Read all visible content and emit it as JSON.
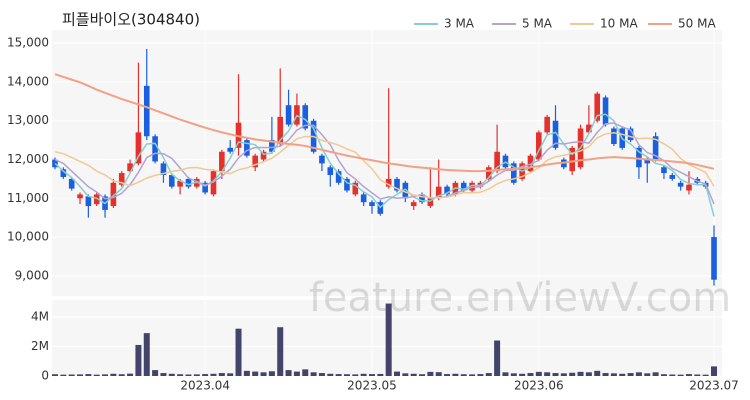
{
  "chart_data": [
    {
      "type": "candlestick",
      "title": "피플바이오(304840)",
      "watermark": "feature.enViewV.com",
      "up_color": "#e5302c",
      "down_color": "#1a5fe0",
      "ylim": [
        8480,
        15340
      ],
      "yticks": [
        {
          "value": 9000,
          "label": "9,000"
        },
        {
          "value": 10000,
          "label": "10,000"
        },
        {
          "value": 11000,
          "label": "11,000"
        },
        {
          "value": 12000,
          "label": "12,000"
        },
        {
          "value": 13000,
          "label": "13,000"
        },
        {
          "value": 14000,
          "label": "14,000"
        },
        {
          "value": 15000,
          "label": "15,000"
        }
      ],
      "grid": true,
      "legend": "top-right",
      "open": [
        12000,
        11750,
        11500,
        11000,
        11050,
        10850,
        11050,
        10800,
        11350,
        11700,
        11900,
        13900,
        12600,
        11900,
        11600,
        11300,
        11500,
        11300,
        11400,
        11100,
        11700,
        12300,
        12300,
        12500,
        11800,
        12000,
        12500,
        12400,
        13400,
        12900,
        13400,
        13000,
        12100,
        11800,
        11700,
        11500,
        11100,
        11100,
        10900,
        10900,
        11300,
        11500,
        11400,
        10800,
        11100,
        10800,
        11000,
        11300,
        11100,
        11400,
        11200,
        11300,
        11500,
        11700,
        12100,
        11900,
        11500,
        11700,
        12000,
        12700,
        13000,
        12000,
        11700,
        11800,
        12700,
        13000,
        13600,
        12800,
        12800,
        12800,
        12300,
        12000,
        12600,
        11800,
        11600,
        11400,
        11200,
        11500,
        11400,
        10000
      ],
      "high": [
        12050,
        11800,
        11550,
        11150,
        11100,
        11150,
        11100,
        11500,
        11700,
        12000,
        14500,
        14850,
        12650,
        11950,
        11650,
        11500,
        11550,
        11550,
        11450,
        11750,
        12250,
        12500,
        14200,
        12550,
        12150,
        12250,
        13100,
        14350,
        13800,
        13700,
        13450,
        13050,
        12150,
        11850,
        11750,
        11550,
        11450,
        11150,
        10950,
        10950,
        13840,
        11550,
        11450,
        10950,
        11150,
        11800,
        12000,
        11350,
        11450,
        11450,
        11450,
        11450,
        11850,
        12900,
        12150,
        11950,
        11950,
        12150,
        12750,
        13150,
        13400,
        12050,
        12350,
        12900,
        13400,
        13750,
        13650,
        12850,
        12850,
        12850,
        12350,
        12050,
        12700,
        11850,
        11650,
        11450,
        11700,
        11550,
        11450,
        10300
      ],
      "low": [
        11750,
        11500,
        11200,
        10850,
        10500,
        10800,
        10500,
        10750,
        11300,
        11650,
        11850,
        12500,
        11900,
        11400,
        11250,
        11100,
        11250,
        11250,
        11100,
        11050,
        11500,
        12150,
        12100,
        12050,
        11700,
        11950,
        12150,
        12350,
        12850,
        12850,
        12750,
        12150,
        11700,
        11300,
        11350,
        11150,
        11050,
        10800,
        10600,
        10550,
        11250,
        11150,
        10900,
        10700,
        10850,
        10750,
        10950,
        11050,
        11050,
        11150,
        11150,
        11250,
        11450,
        11650,
        11750,
        11350,
        11450,
        11650,
        11950,
        12650,
        12250,
        11750,
        11600,
        11750,
        12650,
        12950,
        12850,
        12350,
        12250,
        12450,
        11500,
        11400,
        11950,
        11500,
        11450,
        11200,
        11100,
        11350,
        11250,
        8750
      ],
      "close": [
        11800,
        11550,
        11250,
        11100,
        10800,
        11100,
        10700,
        11400,
        11650,
        11900,
        12700,
        12600,
        11950,
        11600,
        11300,
        11450,
        11300,
        11500,
        11150,
        11700,
        12200,
        12200,
        12950,
        12100,
        12100,
        12200,
        12200,
        13100,
        12900,
        13400,
        12800,
        12200,
        11900,
        11600,
        11400,
        11200,
        11400,
        10900,
        10800,
        10600,
        11500,
        11200,
        11000,
        10900,
        10900,
        11000,
        11300,
        11100,
        11400,
        11200,
        11400,
        11400,
        11800,
        12200,
        11800,
        11400,
        11900,
        12100,
        12700,
        13100,
        12300,
        11800,
        12300,
        12800,
        12900,
        13700,
        12900,
        12400,
        12300,
        12500,
        11800,
        11900,
        12000,
        11650,
        11500,
        11300,
        11350,
        11400,
        11300,
        8900
      ],
      "series": [
        {
          "name": "3 MA",
          "color": "#86cfcc",
          "values": [
            11900,
            11700,
            11533,
            11300,
            11050,
            11000,
            10867,
            11067,
            11250,
            11650,
            12083,
            12400,
            12417,
            12050,
            11617,
            11450,
            11350,
            11417,
            11317,
            11450,
            11683,
            12033,
            12450,
            12417,
            12383,
            12133,
            12167,
            12500,
            12733,
            13133,
            13033,
            12800,
            12300,
            11900,
            11633,
            11400,
            11333,
            11167,
            11033,
            10767,
            10967,
            11100,
            11233,
            11033,
            10933,
            10933,
            11067,
            11133,
            11267,
            11233,
            11333,
            11333,
            11533,
            11800,
            11933,
            11800,
            11700,
            11800,
            12233,
            12633,
            12700,
            12400,
            12133,
            12300,
            12667,
            13133,
            13167,
            13000,
            12533,
            12400,
            12200,
            12067,
            11900,
            11850,
            11717,
            11483,
            11383,
            11350,
            11350,
            10533
          ]
        },
        {
          "name": "5 MA",
          "color": "#b3a3d3",
          "values": [
            12000,
            11900,
            11700,
            11500,
            11300,
            11160,
            10990,
            11020,
            11130,
            11350,
            11670,
            12050,
            12160,
            12150,
            12030,
            11780,
            11520,
            11430,
            11340,
            11420,
            11570,
            11750,
            12040,
            12230,
            12310,
            12310,
            12310,
            12340,
            12500,
            12760,
            12880,
            12880,
            12640,
            12380,
            11980,
            11660,
            11500,
            11300,
            11140,
            10980,
            11040,
            11000,
            11020,
            11040,
            11100,
            11000,
            11020,
            11040,
            11140,
            11200,
            11280,
            11300,
            11440,
            11600,
            11720,
            11720,
            11820,
            11880,
            11980,
            12240,
            12420,
            12400,
            12440,
            12460,
            12420,
            12700,
            12920,
            12940,
            12840,
            12760,
            12380,
            12180,
            12100,
            11970,
            11770,
            11670,
            11560,
            11440,
            11370,
            10850
          ]
        },
        {
          "name": "10 MA",
          "color": "#f1c994",
          "values": [
            12200,
            12150,
            12050,
            11950,
            11850,
            11700,
            11600,
            11450,
            11400,
            11325,
            11415,
            11520,
            11590,
            11640,
            11690,
            11725,
            11785,
            11795,
            11745,
            11725,
            11675,
            11635,
            11735,
            11785,
            11865,
            11940,
            12030,
            12190,
            12365,
            12535,
            12595,
            12595,
            12490,
            12440,
            12370,
            12270,
            12190,
            11970,
            11760,
            11480,
            11350,
            11250,
            11160,
            11090,
            11040,
            11020,
            11010,
            11030,
            11090,
            11150,
            11140,
            11160,
            11240,
            11370,
            11460,
            11500,
            11560,
            11660,
            11790,
            11980,
            12070,
            12110,
            12160,
            12220,
            12330,
            12560,
            12660,
            12690,
            12650,
            12590,
            12540,
            12550,
            12520,
            12405,
            12265,
            12025,
            11870,
            11770,
            11670,
            11310
          ]
        },
        {
          "name": "50 MA",
          "color": "#f2a184",
          "values": [
            14200,
            14130,
            14060,
            13990,
            13900,
            13800,
            13720,
            13640,
            13560,
            13490,
            13420,
            13350,
            13270,
            13190,
            13110,
            13030,
            12960,
            12890,
            12820,
            12760,
            12700,
            12650,
            12600,
            12560,
            12520,
            12490,
            12460,
            12430,
            12400,
            12380,
            12350,
            12300,
            12250,
            12200,
            12150,
            12100,
            12060,
            12020,
            11980,
            11940,
            11900,
            11870,
            11840,
            11810,
            11790,
            11770,
            11750,
            11730,
            11720,
            11710,
            11700,
            11700,
            11710,
            11730,
            11750,
            11760,
            11780,
            11800,
            11830,
            11870,
            11900,
            11920,
            11950,
            11980,
            12000,
            12030,
            12050,
            12060,
            12050,
            12040,
            12020,
            12000,
            11990,
            11970,
            11950,
            11930,
            11900,
            11860,
            11810,
            11760
          ]
        }
      ]
    },
    {
      "type": "bar",
      "color": "#44446a",
      "ylim": [
        0,
        5140000
      ],
      "yticks": [
        0,
        {
          "value": 2000000,
          "label": "2M"
        },
        {
          "value": 4000000,
          "label": "4M"
        }
      ],
      "categories": [
        null,
        null,
        null,
        null,
        null,
        null,
        null,
        null,
        null,
        null,
        null,
        null,
        null,
        null,
        null,
        null,
        null,
        null,
        "2023.04",
        null,
        null,
        null,
        null,
        null,
        null,
        null,
        null,
        null,
        null,
        null,
        null,
        null,
        null,
        null,
        null,
        null,
        null,
        null,
        "2023.05",
        null,
        null,
        null,
        null,
        null,
        null,
        null,
        null,
        null,
        null,
        null,
        null,
        null,
        null,
        null,
        null,
        null,
        null,
        null,
        "2023.06",
        null,
        null,
        null,
        null,
        null,
        null,
        null,
        null,
        null,
        null,
        null,
        null,
        null,
        null,
        null,
        null,
        null,
        null,
        null,
        null,
        "2023.07"
      ],
      "values": [
        120000,
        90000,
        100000,
        110000,
        130000,
        90000,
        110000,
        150000,
        120000,
        160000,
        2100000,
        2900000,
        400000,
        200000,
        150000,
        120000,
        100000,
        110000,
        130000,
        150000,
        200000,
        180000,
        3200000,
        350000,
        300000,
        250000,
        320000,
        3300000,
        400000,
        300000,
        450000,
        250000,
        200000,
        150000,
        130000,
        120000,
        110000,
        150000,
        130000,
        140000,
        4900000,
        300000,
        180000,
        150000,
        120000,
        280000,
        260000,
        130000,
        150000,
        120000,
        110000,
        130000,
        200000,
        2400000,
        250000,
        180000,
        150000,
        200000,
        280000,
        250000,
        200000,
        180000,
        220000,
        280000,
        250000,
        350000,
        200000,
        180000,
        150000,
        200000,
        250000,
        180000,
        250000,
        120000,
        100000,
        90000,
        130000,
        100000,
        90000,
        650000
      ]
    }
  ]
}
